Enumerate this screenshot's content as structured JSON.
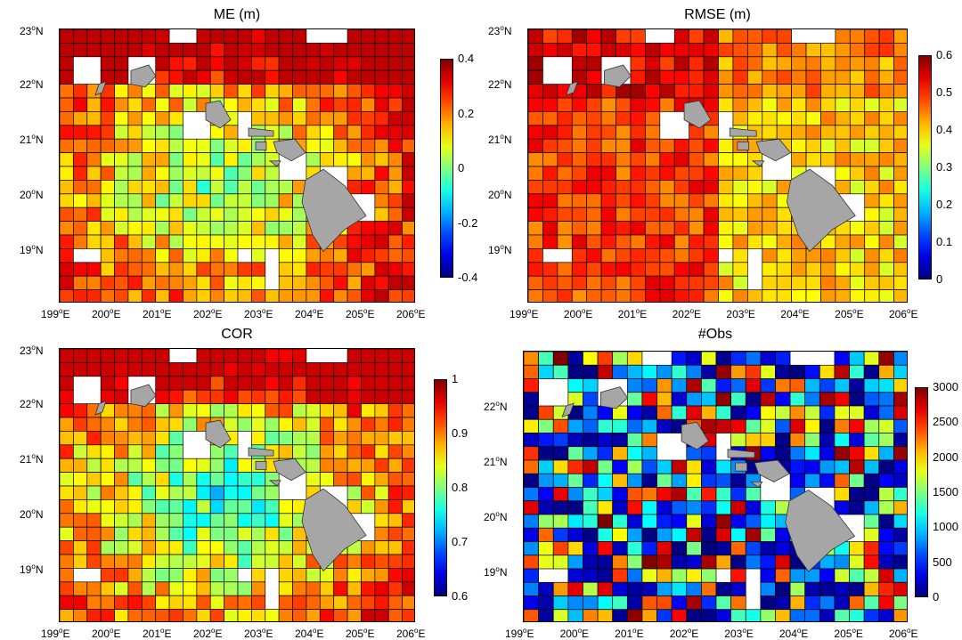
{
  "chart_data": [
    {
      "type": "heatmap",
      "title": "ME (m)",
      "colorbar": {
        "range": [
          -0.4,
          0.4
        ],
        "ticks": [
          "0.4",
          "0.2",
          "0",
          "-0.2",
          "-0.4"
        ],
        "colormap": "jet"
      },
      "xlim": [
        199,
        206
      ],
      "ylim": [
        18.2,
        23
      ],
      "xticks": [
        "199",
        "200",
        "201",
        "202",
        "203",
        "204",
        "205",
        "206"
      ],
      "yticks": [
        "23",
        "22",
        "21",
        "20",
        "19"
      ],
      "xtick_suffix": "E",
      "ytick_suffix": "N",
      "typical_range": [
        -0.2,
        0.35
      ]
    },
    {
      "type": "heatmap",
      "title": "RMSE (m)",
      "colorbar": {
        "range": [
          0,
          0.6
        ],
        "ticks": [
          "0.6",
          "0.5",
          "0.4",
          "0.3",
          "0.2",
          "0.1",
          "0"
        ],
        "colormap": "jet"
      },
      "xlim": [
        199,
        206
      ],
      "ylim": [
        18.2,
        23
      ],
      "xticks": [
        "199",
        "200",
        "201",
        "202",
        "203",
        "204",
        "205",
        "206"
      ],
      "yticks": [
        "23",
        "22",
        "21",
        "20",
        "19"
      ],
      "xtick_suffix": "E",
      "ytick_suffix": "N",
      "typical_range": [
        0.28,
        0.58
      ]
    },
    {
      "type": "heatmap",
      "title": "COR",
      "colorbar": {
        "range": [
          0.6,
          1
        ],
        "ticks": [
          "1",
          "0.9",
          "0.8",
          "0.7",
          "0.6"
        ],
        "colormap": "jet"
      },
      "xlim": [
        199,
        206
      ],
      "ylim": [
        18.2,
        23
      ],
      "xticks": [
        "199",
        "200",
        "201",
        "202",
        "203",
        "204",
        "205",
        "206"
      ],
      "yticks": [
        "23",
        "22",
        "21",
        "20",
        "19"
      ],
      "xtick_suffix": "E",
      "ytick_suffix": "N",
      "typical_range": [
        0.65,
        0.97
      ]
    },
    {
      "type": "heatmap",
      "title": "#Obs",
      "colorbar": {
        "range": [
          0,
          3000
        ],
        "ticks": [
          "3000",
          "2500",
          "2000",
          "1500",
          "1000",
          "500",
          "0"
        ],
        "colormap": "jet"
      },
      "xlim": [
        199,
        206
      ],
      "ylim": [
        18.2,
        23
      ],
      "xticks": [
        "199",
        "200",
        "201",
        "202",
        "203",
        "204",
        "205",
        "206"
      ],
      "yticks": [
        "22",
        "21",
        "20",
        "19"
      ],
      "xtick_suffix": "E",
      "ytick_suffix": "N",
      "typical_range": [
        0,
        3000
      ]
    }
  ],
  "degree_symbol": "o",
  "colors": {
    "land": "#a6a6a6",
    "grid": "#000000"
  }
}
